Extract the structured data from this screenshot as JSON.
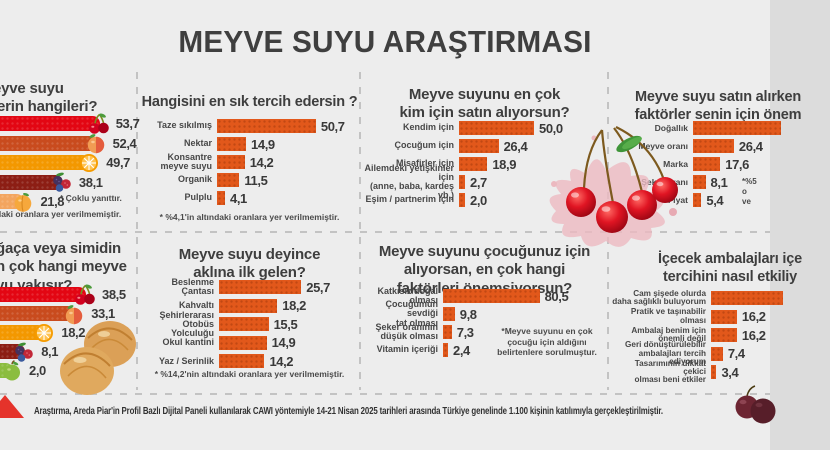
{
  "page": {
    "title": "MEYVE SUYU ARAŞTIRMASI"
  },
  "footer": {
    "note": "Araştırma, Areda Piar'in Profil Bazlı Dijital Paneli kullanılarak CAWI yöntemiyle 14-21 Nisan 2025 tarihleri arasında Türkiye genelinde 1.100 kişinin katılımıyla gerçekleştirilmiştir.",
    "logo": "areda-piar-red-triangle"
  },
  "colors": {
    "background": "#EDEDED",
    "text_dark": "#3E3E3E",
    "bar_orange": "#E2581B",
    "divider_gray": "#C3C3C3",
    "logo_red": "#E5332B"
  },
  "decorations": [
    "cherry-splash-photo",
    "pastry-pogaca-photo",
    "dark-cherries-photo"
  ],
  "chart_data": [
    {
      "type": "bar",
      "title": "eyve suyu\nlerin hangileri?",
      "title_truncated_left": true,
      "icons": [
        "cherry",
        "peach",
        "orange",
        "berries",
        "apricot"
      ],
      "bar_colors": [
        "#E30613",
        "#C94B1E",
        "#F39800",
        "#8C1E14",
        "#F3A55F"
      ],
      "values": [
        53.7,
        52.4,
        49.7,
        38.1,
        21.8
      ],
      "value_labels": [
        "53,7",
        "52,4",
        "49,7",
        "38,1",
        "21,8"
      ],
      "notes": {
        "multi": "* Çoklu yanıttır.",
        "cutoff": "daki oranlara yer verilmemiştir."
      }
    },
    {
      "type": "bar",
      "title": "Hangisini en sık tercih edersin ?",
      "categories": [
        "Taze sıkılmış",
        "Nektar",
        "Konsantre\nmeyve suyu",
        "Organik",
        "Pulplu"
      ],
      "values": [
        50.7,
        14.9,
        14.2,
        11.5,
        4.1
      ],
      "value_labels": [
        "50,7",
        "14,9",
        "14,2",
        "11,5",
        "4,1"
      ],
      "note": "* %4,1'in altındaki oranlara yer verilmemiştir."
    },
    {
      "type": "bar",
      "title": "Meyve suyunu en çok\nkim için satın alıyorsun?",
      "categories": [
        "Kendim için",
        "Çocuğum için",
        "Misafirler için",
        "Ailemdeki yetişkinler için\n(anne, baba, kardeş vb.)",
        "Eşim / partnerim için"
      ],
      "values": [
        50.0,
        26.4,
        18.9,
        2.7,
        2.0
      ],
      "value_labels": [
        "50,0",
        "26,4",
        "18,9",
        "2,7",
        "2,0"
      ]
    },
    {
      "type": "bar",
      "title": "Meyve suyu satın alırken\nfaktörler senin için önem",
      "title_truncated_right": true,
      "categories": [
        "Doğallık",
        "Meyve oranı",
        "Marka",
        "Şeker oranı",
        "Fiyat"
      ],
      "values": [
        null,
        26.4,
        17.6,
        8.1,
        5.4
      ],
      "value_labels": [
        "",
        "26,4",
        "17,6",
        "8,1",
        "5,4"
      ],
      "note": "*%5\no\nve",
      "note_truncated_right": true
    },
    {
      "type": "bar",
      "title": "ğaça veya simidin\nn çok hangi meyve\nyu yakışır?",
      "title_truncated_left": true,
      "icons": [
        "cherry",
        "peach",
        "orange",
        "berries",
        "apple"
      ],
      "bar_colors": [
        "#E30613",
        "#C94B1E",
        "#F39800",
        "#8C1E14",
        "#8BBD3F"
      ],
      "values": [
        38.5,
        33.1,
        18.2,
        8.1,
        2.0
      ],
      "value_labels": [
        "38,5",
        "33,1",
        "18,2",
        "8,1",
        "2,0"
      ]
    },
    {
      "type": "bar",
      "title": "Meyve suyu deyince\naklına ilk gelen?",
      "categories": [
        "Beslenme\nÇantası",
        "Kahvaltı",
        "Şehirlerarası\nOtobüs Yolculuğu",
        "Okul kantini",
        "Yaz / Serinlik"
      ],
      "values": [
        25.7,
        18.2,
        15.5,
        14.9,
        14.2
      ],
      "value_labels": [
        "25,7",
        "18,2",
        "15,5",
        "14,9",
        "14,2"
      ],
      "note": "* %14,2'nin altındaki oranlara yer verilmemiştir."
    },
    {
      "type": "bar",
      "title": "Meyve suyunu çocuğunuz için\nalıyorsan, en çok hangi\nfaktörleri önemsiyorsun?",
      "categories": [
        "Katkısız/doğal\nolması",
        "Çocuğumun sevdiği\ntat olması",
        "Şeker oranının\ndüşük olması",
        "Vitamin içeriği"
      ],
      "values": [
        80.5,
        9.8,
        7.3,
        2.4
      ],
      "value_labels": [
        "80,5",
        "9,8",
        "7,3",
        "2,4"
      ],
      "note": "*Meyve suyunu en çok\nçocuğu için aldığını\nbelirtenlere sorulmuştur."
    },
    {
      "type": "bar",
      "title": "İçecek ambalajları içe\ntercihini nasıl etkiliy",
      "title_truncated_right": true,
      "categories": [
        "Cam şişede olurda\ndaha sağlıklı buluyorum",
        "Pratik ve taşınabilir\nolması",
        "Ambalaj benim için\nönemli değil",
        "Geri dönüştürülebilir\nambalajları tercih ediyorum",
        "Tasarımının dikkat çekici\nolması beni etkiler"
      ],
      "values": [
        null,
        16.2,
        16.2,
        7.4,
        3.4
      ],
      "value_labels": [
        "",
        "16,2",
        "16,2",
        "7,4",
        "3,4"
      ]
    }
  ]
}
